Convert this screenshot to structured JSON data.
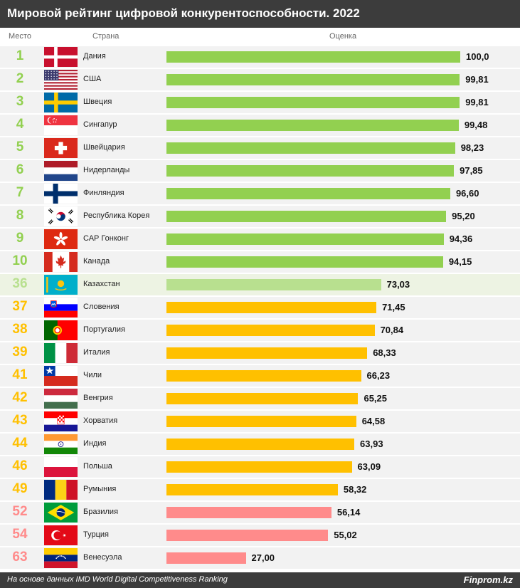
{
  "title": "Мировой рейтинг цифровой конкурентоспособности. 2022",
  "headers": {
    "rank": "Место",
    "country": "Страна",
    "score": "Оценка"
  },
  "footer": {
    "note": "На основе данных IMD World Digital Competitiveness Ranking",
    "brand": "Finprom.kz"
  },
  "colors": {
    "title_bg": "#3c3c3c",
    "top10": "#92d050",
    "kazakhstan": "#b8e08f",
    "kazakhstan_row_bg": "#edf3e3",
    "mid": "#ffc000",
    "low": "#ff8b8b",
    "row_bg": "#f2f2f2"
  },
  "chart_data": {
    "type": "bar",
    "orientation": "horizontal",
    "title": "Мировой рейтинг цифровой конкурентоспособности. 2022",
    "xlim": [
      0,
      100
    ],
    "rows": [
      {
        "rank": "1",
        "country": "Дания",
        "value": 100.0,
        "label": "100,0",
        "flag": "denmark",
        "group": "top10"
      },
      {
        "rank": "2",
        "country": "США",
        "value": 99.81,
        "label": "99,81",
        "flag": "usa",
        "group": "top10"
      },
      {
        "rank": "3",
        "country": "Швеция",
        "value": 99.81,
        "label": "99,81",
        "flag": "sweden",
        "group": "top10"
      },
      {
        "rank": "4",
        "country": "Сингапур",
        "value": 99.48,
        "label": "99,48",
        "flag": "singapore",
        "group": "top10"
      },
      {
        "rank": "5",
        "country": "Швейцария",
        "value": 98.23,
        "label": "98,23",
        "flag": "switzerland",
        "group": "top10"
      },
      {
        "rank": "6",
        "country": "Нидерланды",
        "value": 97.85,
        "label": "97,85",
        "flag": "netherlands",
        "group": "top10"
      },
      {
        "rank": "7",
        "country": "Финляндия",
        "value": 96.6,
        "label": "96,60",
        "flag": "finland",
        "group": "top10"
      },
      {
        "rank": "8",
        "country": "Республика Корея",
        "value": 95.2,
        "label": "95,20",
        "flag": "korea",
        "group": "top10"
      },
      {
        "rank": "9",
        "country": "САР Гонконг",
        "value": 94.36,
        "label": "94,36",
        "flag": "hongkong",
        "group": "top10"
      },
      {
        "rank": "10",
        "country": "Канада",
        "value": 94.15,
        "label": "94,15",
        "flag": "canada",
        "group": "top10"
      },
      {
        "rank": "36",
        "country": "Казахстан",
        "value": 73.03,
        "label": "73,03",
        "flag": "kazakhstan",
        "group": "kazakhstan"
      },
      {
        "rank": "37",
        "country": "Словения",
        "value": 71.45,
        "label": "71,45",
        "flag": "slovenia",
        "group": "mid"
      },
      {
        "rank": "38",
        "country": "Португалия",
        "value": 70.84,
        "label": "70,84",
        "flag": "portugal",
        "group": "mid"
      },
      {
        "rank": "39",
        "country": "Италия",
        "value": 68.33,
        "label": "68,33",
        "flag": "italy",
        "group": "mid"
      },
      {
        "rank": "41",
        "country": "Чили",
        "value": 66.23,
        "label": "66,23",
        "flag": "chile",
        "group": "mid"
      },
      {
        "rank": "42",
        "country": "Венгрия",
        "value": 65.25,
        "label": "65,25",
        "flag": "hungary",
        "group": "mid"
      },
      {
        "rank": "43",
        "country": "Хорватия",
        "value": 64.58,
        "label": "64,58",
        "flag": "croatia",
        "group": "mid"
      },
      {
        "rank": "44",
        "country": "Индия",
        "value": 63.93,
        "label": "63,93",
        "flag": "india",
        "group": "mid"
      },
      {
        "rank": "46",
        "country": "Польша",
        "value": 63.09,
        "label": "63,09",
        "flag": "poland",
        "group": "mid"
      },
      {
        "rank": "49",
        "country": "Румыния",
        "value": 58.32,
        "label": "58,32",
        "flag": "romania",
        "group": "mid"
      },
      {
        "rank": "52",
        "country": "Бразилия",
        "value": 56.14,
        "label": "56,14",
        "flag": "brazil",
        "group": "low"
      },
      {
        "rank": "54",
        "country": "Турция",
        "value": 55.02,
        "label": "55,02",
        "flag": "turkey",
        "group": "low"
      },
      {
        "rank": "63",
        "country": "Венесуэла",
        "value": 27.0,
        "label": "27,00",
        "flag": "venezuela",
        "group": "low"
      }
    ]
  }
}
